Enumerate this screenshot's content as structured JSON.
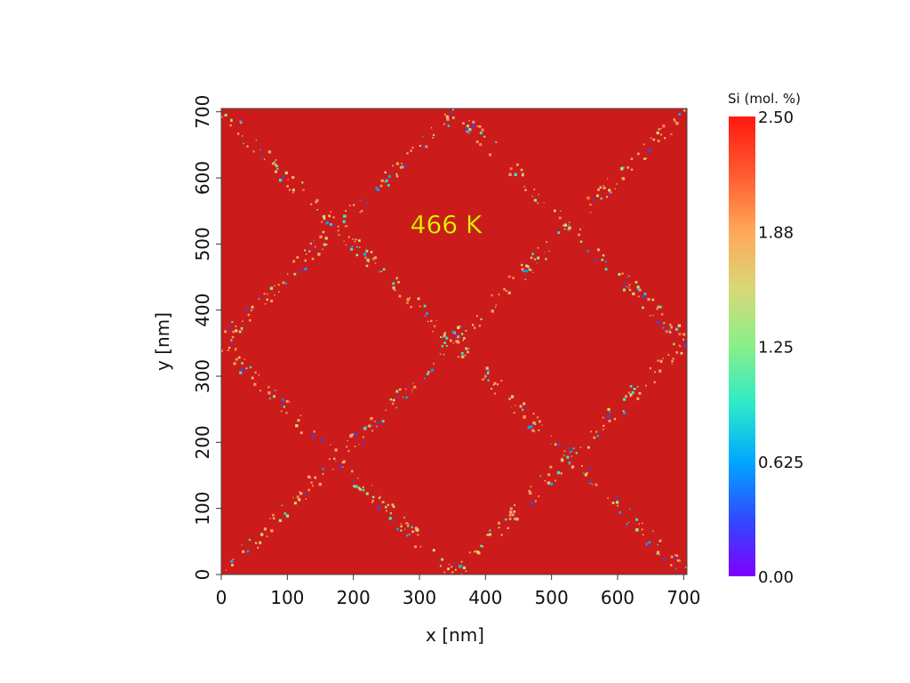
{
  "chart_data": {
    "type": "heatmap",
    "title": "",
    "annotation": {
      "text": "466 K",
      "color": "#ffee00"
    },
    "xlabel": "x [nm]",
    "ylabel": "y [nm]",
    "xlim": [
      0,
      705
    ],
    "ylim": [
      0,
      705
    ],
    "x_ticks": [
      0,
      100,
      200,
      300,
      400,
      500,
      600,
      700
    ],
    "x_tick_labels": [
      "0",
      "100",
      "200",
      "300",
      "400",
      "500",
      "600",
      "700"
    ],
    "y_ticks": [
      0,
      100,
      200,
      300,
      400,
      500,
      600,
      700
    ],
    "y_tick_labels": [
      "0",
      "100",
      "200",
      "300",
      "400",
      "500",
      "600",
      "700"
    ],
    "grid": false,
    "background_value": 2.5,
    "field_color": "#cc1b1b",
    "description_of_pattern": "Bulk at 2.50 mol.% Si with diagonal lattice of grain-boundary-like lines (depleted Si speckles) forming diamond cells with nodes near x=175,350,525 and y=175,350,525,700",
    "boundary_lines": [
      {
        "from": [
          0,
          700
        ],
        "to": [
          705,
          0
        ]
      },
      {
        "from": [
          0,
          350
        ],
        "to": [
          350,
          0
        ]
      },
      {
        "from": [
          350,
          705
        ],
        "to": [
          705,
          350
        ]
      },
      {
        "from": [
          0,
          0
        ],
        "to": [
          705,
          705
        ]
      },
      {
        "from": [
          0,
          350
        ],
        "to": [
          355,
          705
        ]
      },
      {
        "from": [
          350,
          0
        ],
        "to": [
          705,
          355
        ]
      }
    ],
    "colorbar": {
      "label": "Si (mol. %)",
      "min": 0.0,
      "max": 2.5,
      "ticks": [
        0.0,
        0.625,
        1.25,
        1.875,
        2.5
      ],
      "tick_labels": [
        "0.00",
        "0.625",
        "1.25",
        "1.88",
        "2.50"
      ],
      "colormap": "rainbow",
      "color_stops": [
        "#7f00ff",
        "#2f4bff",
        "#00a8ff",
        "#2eeac8",
        "#88f088",
        "#d8d878",
        "#ffa858",
        "#ff5a30",
        "#ff1a10"
      ]
    }
  }
}
